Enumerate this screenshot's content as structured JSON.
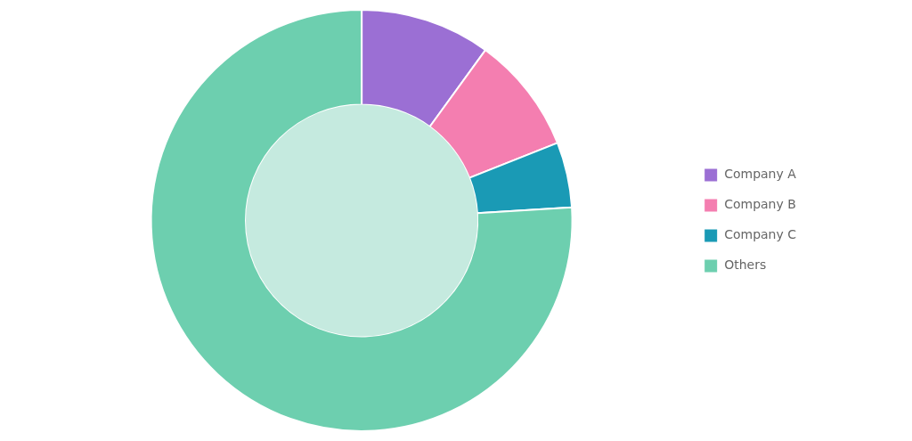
{
  "chart_data": {
    "type": "donut",
    "categories": [
      "Company A",
      "Company B",
      "Company C",
      "Others"
    ],
    "values": [
      10,
      9,
      5,
      76
    ],
    "colors": [
      "#9b6fd4",
      "#f47eb0",
      "#1a9ab5",
      "#6dcfaf"
    ],
    "color": "#c5eadf",
    "legend": "right"
  }
}
